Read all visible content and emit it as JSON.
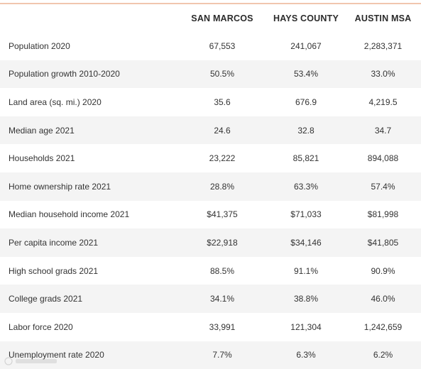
{
  "table": {
    "headers": [
      "",
      "SAN MARCOS",
      "HAYS COUNTY",
      "AUSTIN MSA"
    ],
    "rows": [
      {
        "label": "Population 2020",
        "san_marcos": "67,553",
        "hays_county": "241,067",
        "austin_msa": "2,283,371"
      },
      {
        "label": "Population growth 2010-2020",
        "san_marcos": "50.5%",
        "hays_county": "53.4%",
        "austin_msa": "33.0%"
      },
      {
        "label": "Land area (sq. mi.) 2020",
        "san_marcos": "35.6",
        "hays_county": "676.9",
        "austin_msa": "4,219.5"
      },
      {
        "label": "Median age 2021",
        "san_marcos": "24.6",
        "hays_county": "32.8",
        "austin_msa": "34.7"
      },
      {
        "label": "Households 2021",
        "san_marcos": "23,222",
        "hays_county": "85,821",
        "austin_msa": "894,088"
      },
      {
        "label": "Home ownership rate 2021",
        "san_marcos": "28.8%",
        "hays_county": "63.3%",
        "austin_msa": "57.4%"
      },
      {
        "label": "Median household income 2021",
        "san_marcos": "$41,375",
        "hays_county": "$71,033",
        "austin_msa": "$81,998"
      },
      {
        "label": "Per capita income 2021",
        "san_marcos": "$22,918",
        "hays_county": "$34,146",
        "austin_msa": "$41,805"
      },
      {
        "label": "High school grads 2021",
        "san_marcos": "88.5%",
        "hays_county": "91.1%",
        "austin_msa": "90.9%"
      },
      {
        "label": "College grads 2021",
        "san_marcos": "34.1%",
        "hays_county": "38.8%",
        "austin_msa": "46.0%"
      },
      {
        "label": "Labor force 2020",
        "san_marcos": "33,991",
        "hays_county": "121,304",
        "austin_msa": "1,242,659"
      },
      {
        "label": "Unemployment rate 2020",
        "san_marcos": "7.7%",
        "hays_county": "6.3%",
        "austin_msa": "6.2%"
      }
    ]
  },
  "colors": {
    "top_rule": "#f1c6ae",
    "row_alt": "#f4f4f4",
    "row_base": "#ffffff",
    "text": "#333333"
  }
}
